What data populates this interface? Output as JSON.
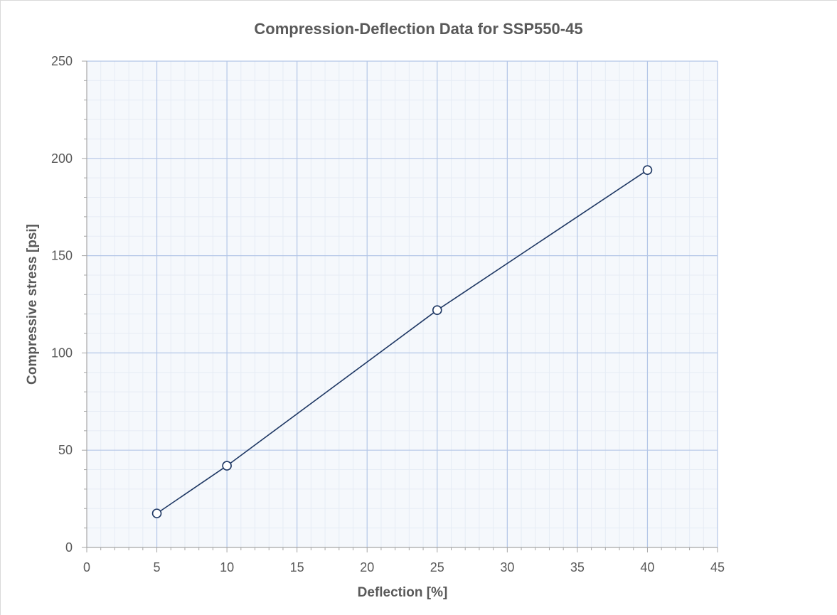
{
  "chart_data": {
    "type": "line",
    "title": "Compression-Deflection Data for SSP550-45",
    "xlabel": "Deflection [%]",
    "ylabel": "Compressive stress [psi]",
    "xlim": [
      0,
      45
    ],
    "ylim": [
      0,
      250
    ],
    "xticks": [
      "0",
      "5",
      "10",
      "15",
      "20",
      "25",
      "30",
      "35",
      "40",
      "45"
    ],
    "yticks": [
      "0",
      "50",
      "100",
      "150",
      "200",
      "250"
    ],
    "grid": true,
    "legend": "none",
    "series": [
      {
        "x": [
          5,
          10,
          25,
          40
        ],
        "y": [
          17.5,
          42,
          122,
          194
        ],
        "color": "#1f3864",
        "marker": "open-circle"
      }
    ],
    "colors": {
      "major_grid": "#b4c6e7",
      "minor_grid": "#e6ecf5",
      "plot_background": "#f5f8fc",
      "axis": "#a6a6a6"
    }
  }
}
